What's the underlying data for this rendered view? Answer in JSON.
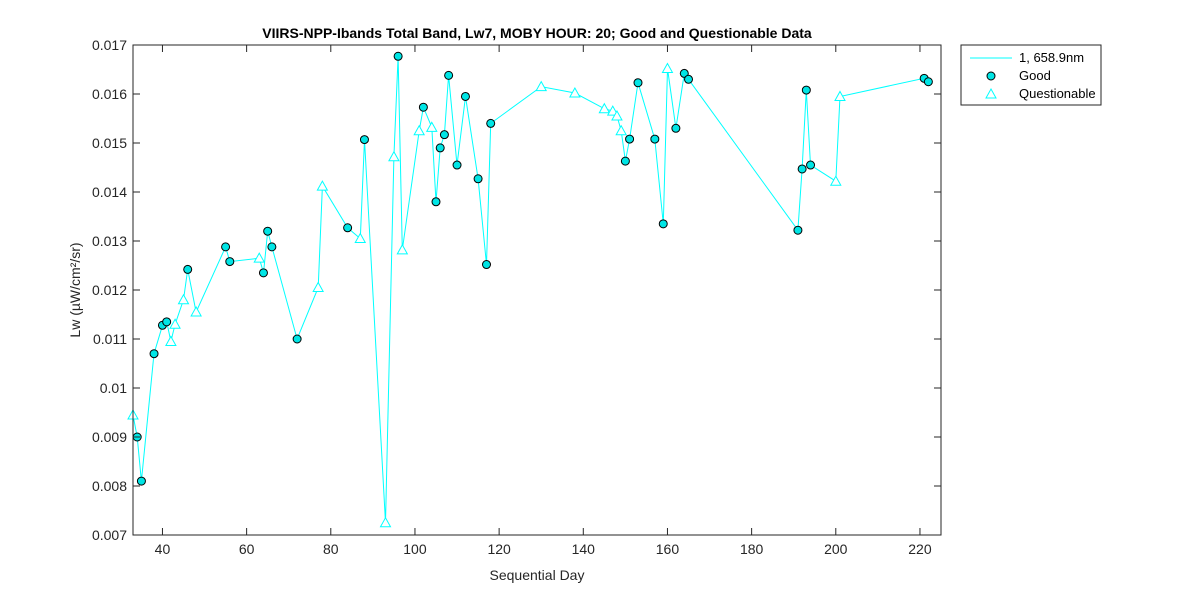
{
  "chart_data": {
    "type": "line",
    "title": "VIIRS-NPP-Ibands Total Band,  Lw7, MOBY HOUR: 20;  Good and Questionable Data",
    "xlabel": "Sequential Day",
    "ylabel": "Lw (µW/cm²/sr)",
    "xlim": [
      33,
      225
    ],
    "ylim": [
      0.007,
      0.017
    ],
    "xticks": [
      40,
      60,
      80,
      100,
      120,
      140,
      160,
      180,
      200,
      220
    ],
    "yticks": [
      0.007,
      0.008,
      0.009,
      0.01,
      0.011,
      0.012,
      0.013,
      0.014,
      0.015,
      0.016,
      0.017
    ],
    "ytick_labels": [
      "0.007",
      "0.008",
      "0.009",
      "0.01",
      "0.011",
      "0.012",
      "0.013",
      "0.014",
      "0.015",
      "0.016",
      "0.017"
    ],
    "grid": false,
    "legend_position": "outside top-right",
    "series": [
      {
        "name": "1, 658.9nm",
        "color": "#00ffff",
        "x": [
          33,
          34,
          35,
          38,
          40,
          41,
          42,
          43,
          45,
          46,
          48,
          55,
          56,
          63,
          64,
          65,
          66,
          72,
          77,
          78,
          84,
          87,
          88,
          93,
          95,
          96,
          97,
          101,
          102,
          104,
          105,
          106,
          107,
          108,
          110,
          112,
          115,
          117,
          118,
          130,
          138,
          145,
          147,
          148,
          149,
          150,
          151,
          153,
          157,
          159,
          160,
          162,
          164,
          165,
          191,
          192,
          193,
          194,
          200,
          201,
          221,
          222
        ],
        "y": [
          0.00945,
          0.009,
          0.0081,
          0.0107,
          0.01128,
          0.01135,
          0.01095,
          0.0113,
          0.0118,
          0.01242,
          0.01155,
          0.01288,
          0.01258,
          0.01265,
          0.01235,
          0.0132,
          0.01288,
          0.011,
          0.01205,
          0.01412,
          0.01327,
          0.01305,
          0.01507,
          0.00725,
          0.01472,
          0.01677,
          0.01282,
          0.01525,
          0.01573,
          0.01532,
          0.0138,
          0.0149,
          0.01517,
          0.01638,
          0.01455,
          0.01595,
          0.01427,
          0.01252,
          0.0154,
          0.01615,
          0.01602,
          0.0157,
          0.01565,
          0.01555,
          0.01525,
          0.01463,
          0.01508,
          0.01623,
          0.01508,
          0.01335,
          0.01652,
          0.0153,
          0.01642,
          0.0163,
          0.01322,
          0.01447,
          0.01608,
          0.01455,
          0.01422,
          0.01595,
          0.01632,
          0.01625
        ]
      }
    ],
    "good": {
      "name": "Good",
      "color": "#00ffff",
      "x": [
        34,
        35,
        38,
        40,
        41,
        46,
        55,
        56,
        64,
        65,
        66,
        72,
        84,
        88,
        96,
        102,
        105,
        106,
        107,
        108,
        110,
        112,
        115,
        117,
        118,
        150,
        151,
        153,
        157,
        159,
        162,
        164,
        165,
        191,
        192,
        193,
        194,
        221,
        222
      ],
      "y": [
        0.009,
        0.0081,
        0.0107,
        0.01128,
        0.01135,
        0.01242,
        0.01288,
        0.01258,
        0.01235,
        0.0132,
        0.01288,
        0.011,
        0.01327,
        0.01507,
        0.01677,
        0.01573,
        0.0138,
        0.0149,
        0.01517,
        0.01638,
        0.01455,
        0.01595,
        0.01427,
        0.01252,
        0.0154,
        0.01463,
        0.01508,
        0.01623,
        0.01508,
        0.01335,
        0.0153,
        0.01642,
        0.0163,
        0.01322,
        0.01447,
        0.01608,
        0.01455,
        0.01632,
        0.01625
      ]
    },
    "questionable": {
      "name": "Questionable",
      "color": "#00ffff",
      "x": [
        33,
        42,
        43,
        45,
        48,
        63,
        77,
        78,
        87,
        93,
        95,
        97,
        101,
        104,
        130,
        138,
        145,
        147,
        148,
        149,
        160,
        200,
        201
      ],
      "y": [
        0.00945,
        0.01095,
        0.0113,
        0.0118,
        0.01155,
        0.01265,
        0.01205,
        0.01412,
        0.01305,
        0.00725,
        0.01472,
        0.01282,
        0.01525,
        0.01532,
        0.01615,
        0.01602,
        0.0157,
        0.01565,
        0.01555,
        0.01525,
        0.01652,
        0.01422,
        0.01595
      ]
    },
    "legend": [
      "1, 658.9nm",
      "Good",
      "Questionable"
    ]
  }
}
